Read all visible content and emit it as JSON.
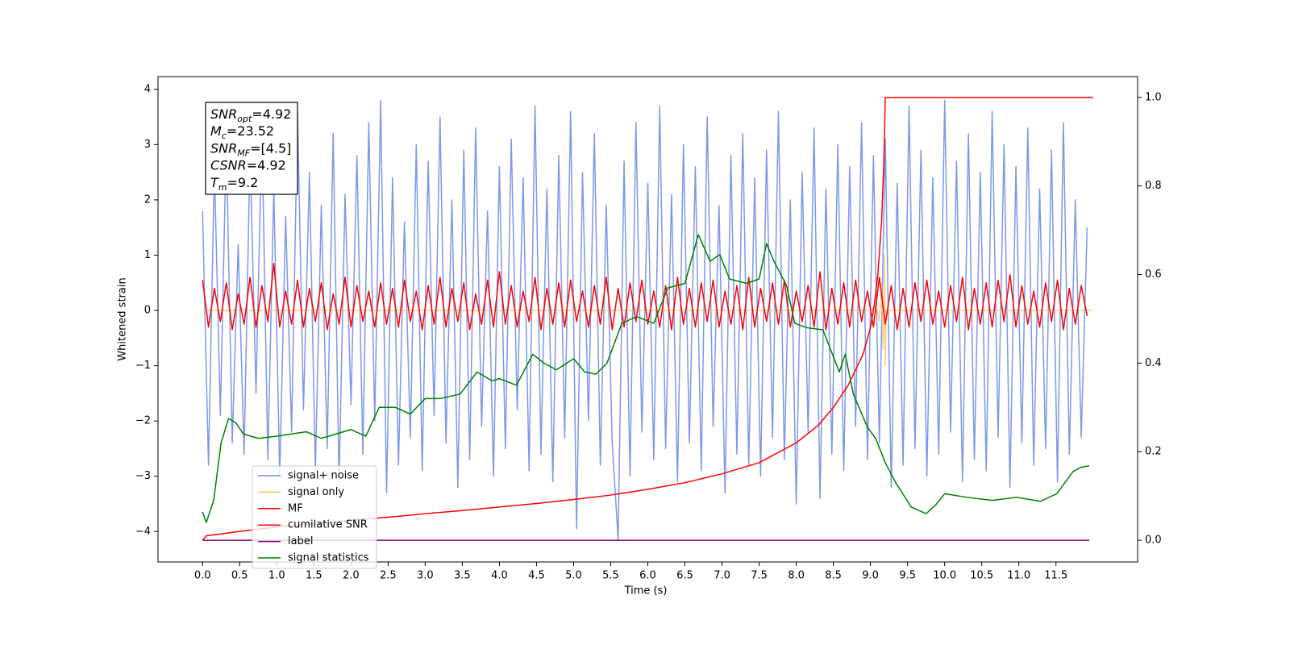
{
  "chart_data": {
    "type": "line",
    "xlabel": "Time (s)",
    "ylabel": "Whitened strain",
    "xlim": [
      -0.6,
      12.6
    ],
    "ylim": [
      -4.55,
      4.23
    ],
    "y2lim": [
      -0.049,
      1.047
    ],
    "xticks": [
      {
        "value": 0,
        "label": "0.0"
      },
      0.5,
      {
        "value": 1,
        "label": "1.0"
      },
      1.5,
      {
        "value": 2,
        "label": "2.0"
      },
      2.5,
      {
        "value": 3,
        "label": "3.0"
      },
      3.5,
      {
        "value": 4,
        "label": "4.0"
      },
      4.5,
      {
        "value": 5,
        "label": "5.0"
      },
      5.5,
      {
        "value": 6,
        "label": "6.0"
      },
      6.5,
      {
        "value": 7,
        "label": "7.0"
      },
      7.5,
      {
        "value": 8,
        "label": "8.0"
      },
      8.5,
      {
        "value": 9,
        "label": "9.0"
      },
      9.5,
      {
        "value": 10,
        "label": "10.0"
      },
      10.5,
      {
        "value": 11,
        "label": "11.0"
      },
      11.5
    ],
    "yticks": [
      {
        "value": -4,
        "label": "−4"
      },
      {
        "value": -3,
        "label": "−3"
      },
      {
        "value": -2,
        "label": "−2"
      },
      {
        "value": -1,
        "label": "−1"
      },
      0,
      1,
      2,
      3,
      4
    ],
    "y2ticks": [
      {
        "value": 0,
        "label": "0.0"
      },
      0.2,
      0.4,
      0.6,
      0.8,
      {
        "value": 1,
        "label": "1.0"
      }
    ],
    "legend": "lower left",
    "annotation": [
      {
        "main": "SNR",
        "sub": "opt",
        "rest": "=4.92"
      },
      {
        "main": "M",
        "sub": "c",
        "rest": "=23.52"
      },
      {
        "main": "SNR",
        "sub": "MF",
        "rest": "=[4.5]"
      },
      {
        "main": "CSNR",
        "rest": "=4.92"
      },
      {
        "main": "T",
        "sub": "m",
        "rest": "=9.2"
      }
    ],
    "x": [
      0,
      0.08,
      0.16,
      0.24,
      0.32,
      0.4,
      0.48,
      0.56,
      0.64,
      0.72,
      0.8,
      0.88,
      0.96,
      1.04,
      1.12,
      1.2,
      1.28,
      1.36,
      1.44,
      1.52,
      1.6,
      1.68,
      1.76,
      1.84,
      1.92,
      2,
      2.08,
      2.16,
      2.24,
      2.32,
      2.4,
      2.48,
      2.56,
      2.64,
      2.72,
      2.8,
      2.88,
      2.96,
      3.04,
      3.12,
      3.2,
      3.28,
      3.36,
      3.44,
      3.52,
      3.6,
      3.68,
      3.76,
      3.84,
      3.92,
      4,
      4.08,
      4.16,
      4.24,
      4.32,
      4.4,
      4.48,
      4.56,
      4.64,
      4.72,
      4.8,
      4.88,
      4.96,
      5.04,
      5.12,
      5.2,
      5.28,
      5.36,
      5.44,
      5.52,
      5.6,
      5.68,
      5.76,
      5.84,
      5.92,
      6,
      6.08,
      6.16,
      6.24,
      6.32,
      6.4,
      6.48,
      6.56,
      6.64,
      6.72,
      6.8,
      6.88,
      6.96,
      7.04,
      7.12,
      7.2,
      7.28,
      7.36,
      7.44,
      7.52,
      7.6,
      7.68,
      7.76,
      7.84,
      7.92,
      8,
      8.08,
      8.16,
      8.24,
      8.32,
      8.4,
      8.48,
      8.56,
      8.64,
      8.72,
      8.8,
      8.88,
      8.96,
      9.04,
      9.12,
      9.2,
      9.28,
      9.36,
      9.44,
      9.52,
      9.6,
      9.68,
      9.76,
      9.84,
      9.92,
      10,
      10.08,
      10.16,
      10.24,
      10.32,
      10.4,
      10.48,
      10.56,
      10.64,
      10.72,
      10.8,
      10.88,
      10.96,
      11.04,
      11.12,
      11.2,
      11.28,
      11.36,
      11.44,
      11.52,
      11.6,
      11.68,
      11.76,
      11.84,
      11.92
    ],
    "series": [
      {
        "name": "signal+ noise",
        "color": "#6f8de6",
        "values": [
          1.8,
          -2.8,
          2.6,
          -1.9,
          3.1,
          -2.4,
          1.2,
          -2.6,
          2.9,
          -1.5,
          3.3,
          -2.7,
          2.2,
          -3.0,
          1.7,
          -2.2,
          3.6,
          -1.8,
          2.5,
          -2.9,
          1.9,
          -2.5,
          3.2,
          -3.1,
          2.1,
          -1.7,
          2.8,
          -2.6,
          3.4,
          -2.0,
          3.8,
          -3.3,
          2.4,
          -2.8,
          1.6,
          -2.3,
          3.0,
          -2.9,
          2.7,
          -1.9,
          3.5,
          -2.4,
          2.0,
          -3.2,
          2.9,
          -2.7,
          3.3,
          -2.1,
          1.8,
          -3.0,
          2.6,
          -2.5,
          3.1,
          -1.8,
          2.4,
          -2.9,
          3.7,
          -2.6,
          2.2,
          -3.1,
          2.8,
          -2.3,
          3.6,
          -3.95,
          2.5,
          -2.0,
          3.2,
          -2.8,
          1.9,
          -2.4,
          -4.15,
          2.7,
          -3.0,
          3.4,
          -2.2,
          2.3,
          -2.7,
          3.7,
          -2.5,
          2.1,
          -3.1,
          3.0,
          -2.4,
          2.6,
          -2.9,
          3.5,
          -2.1,
          1.9,
          -3.3,
          2.8,
          -2.6,
          3.2,
          -2.8,
          2.4,
          -3.0,
          2.9,
          -2.3,
          3.6,
          -2.7,
          2.0,
          -3.5,
          2.5,
          -2.2,
          3.3,
          -3.4,
          2.2,
          -2.6,
          3.0,
          -2.9,
          2.6,
          -2.1,
          3.4,
          -2.7,
          2.8,
          -2.4,
          3.1,
          -3.2,
          2.3,
          -2.8,
          3.7,
          -2.5,
          2.9,
          -3.0,
          2.4,
          -2.6,
          3.8,
          -2.2,
          2.7,
          -3.1,
          3.2,
          -2.7,
          2.5,
          -2.9,
          3.6,
          -2.3,
          3.0,
          -3.2,
          2.6,
          -2.4,
          3.3,
          -2.8,
          2.2,
          -2.5,
          2.9,
          -3.1,
          3.4,
          -2.6,
          2.0,
          -2.3,
          1.5
        ]
      },
      {
        "name": "signal only",
        "color": "#f5c46a",
        "x": [
          0,
          9.0,
          9.08,
          9.12,
          9.15,
          9.17,
          9.19,
          9.2,
          9.21,
          11.99
        ],
        "values": [
          0,
          0,
          0.1,
          -0.2,
          0.5,
          -0.7,
          1.0,
          -1.0,
          0,
          0
        ]
      },
      {
        "name": "MF",
        "color": "#ff0000",
        "values": [
          0.55,
          -0.3,
          0.4,
          -0.2,
          0.5,
          -0.35,
          0.3,
          -0.25,
          0.6,
          -0.3,
          0.45,
          -0.2,
          0.85,
          -0.3,
          0.35,
          -0.25,
          0.55,
          -0.3,
          0.4,
          -0.2,
          0.5,
          -0.35,
          0.3,
          -0.25,
          0.6,
          -0.3,
          0.45,
          -0.2,
          0.35,
          -0.3,
          0.5,
          -0.25,
          0.4,
          -0.3,
          0.55,
          -0.2,
          0.35,
          -0.35,
          0.45,
          -0.25,
          0.6,
          -0.3,
          0.4,
          -0.2,
          0.5,
          -0.35,
          0.3,
          -0.25,
          0.55,
          -0.3,
          0.7,
          -0.25,
          0.45,
          -0.3,
          0.35,
          -0.2,
          0.6,
          -0.35,
          0.4,
          -0.25,
          0.5,
          -0.3,
          0.55,
          -0.2,
          0.35,
          -0.3,
          0.45,
          -0.25,
          0.6,
          -0.35,
          0.4,
          -0.3,
          0.5,
          -0.2,
          0.55,
          -0.25,
          0.35,
          -0.3,
          0.45,
          -0.35,
          0.6,
          -0.25,
          0.4,
          -0.3,
          0.5,
          -0.2,
          0.55,
          -0.3,
          0.35,
          -0.25,
          0.45,
          -0.35,
          0.6,
          -0.3,
          0.4,
          -0.2,
          0.5,
          -0.25,
          0.55,
          -0.3,
          0.35,
          -0.2,
          0.45,
          -0.3,
          0.7,
          -0.35,
          0.4,
          -0.25,
          0.5,
          -0.3,
          0.55,
          -0.2,
          0.35,
          -0.3,
          0.6,
          -0.25,
          0.45,
          -0.35,
          0.4,
          -0.3,
          0.5,
          -0.2,
          0.55,
          -0.25,
          0.35,
          -0.3,
          0.45,
          -0.2,
          0.6,
          -0.35,
          0.4,
          -0.25,
          0.5,
          -0.3,
          0.55,
          -0.2,
          0.65,
          -0.3,
          0.45,
          -0.25,
          0.35,
          -0.3,
          0.5,
          -0.2,
          0.55,
          -0.35,
          0.4,
          -0.25,
          0.45,
          -0.1
        ]
      },
      {
        "name": "cumilative SNR",
        "color": "#ff0000",
        "axis": "y2",
        "x": [
          0,
          0.05,
          0.5,
          1,
          1.5,
          2,
          2.5,
          3,
          3.5,
          4,
          4.5,
          5,
          5.5,
          6,
          6.5,
          7,
          7.5,
          8,
          8.3,
          8.5,
          8.7,
          8.9,
          9.0,
          9.05,
          9.1,
          9.15,
          9.18,
          9.2,
          12.0
        ],
        "values": [
          0,
          0.01,
          0.02,
          0.03,
          0.037,
          0.045,
          0.052,
          0.06,
          0.067,
          0.075,
          0.083,
          0.092,
          0.102,
          0.115,
          0.13,
          0.15,
          0.175,
          0.22,
          0.26,
          0.3,
          0.35,
          0.42,
          0.48,
          0.53,
          0.6,
          0.72,
          0.85,
          1.0,
          1.0
        ]
      },
      {
        "name": "label",
        "color": "#800080",
        "axis": "y2",
        "x": [
          0,
          11.95
        ],
        "values": [
          0,
          0
        ]
      },
      {
        "name": "signal statistics",
        "color": "#008000",
        "axis": "y2",
        "x": [
          0,
          0.05,
          0.15,
          0.25,
          0.35,
          0.45,
          0.55,
          0.75,
          1.0,
          1.2,
          1.4,
          1.6,
          1.8,
          2.0,
          2.2,
          2.38,
          2.6,
          2.8,
          3.0,
          3.2,
          3.47,
          3.7,
          3.9,
          4.0,
          4.23,
          4.45,
          4.6,
          4.77,
          5.0,
          5.15,
          5.3,
          5.45,
          5.65,
          5.85,
          6.08,
          6.27,
          6.5,
          6.68,
          6.84,
          6.97,
          7.1,
          7.33,
          7.5,
          7.6,
          7.7,
          7.87,
          7.98,
          8.14,
          8.36,
          8.58,
          8.66,
          8.77,
          8.96,
          9.07,
          9.2,
          9.34,
          9.55,
          9.75,
          9.88,
          10.0,
          10.3,
          10.64,
          10.97,
          11.29,
          11.51,
          11.73,
          11.84,
          11.95
        ],
        "values": [
          0.064,
          0.04,
          0.09,
          0.22,
          0.275,
          0.265,
          0.24,
          0.23,
          0.235,
          0.24,
          0.245,
          0.23,
          0.24,
          0.25,
          0.235,
          0.3,
          0.3,
          0.285,
          0.32,
          0.32,
          0.33,
          0.38,
          0.36,
          0.365,
          0.35,
          0.42,
          0.4,
          0.385,
          0.41,
          0.38,
          0.375,
          0.4,
          0.49,
          0.505,
          0.49,
          0.57,
          0.58,
          0.69,
          0.63,
          0.645,
          0.59,
          0.58,
          0.59,
          0.67,
          0.63,
          0.575,
          0.49,
          0.48,
          0.475,
          0.38,
          0.42,
          0.33,
          0.255,
          0.23,
          0.175,
          0.13,
          0.075,
          0.06,
          0.08,
          0.105,
          0.097,
          0.09,
          0.097,
          0.088,
          0.105,
          0.155,
          0.165,
          0.168
        ]
      }
    ]
  }
}
